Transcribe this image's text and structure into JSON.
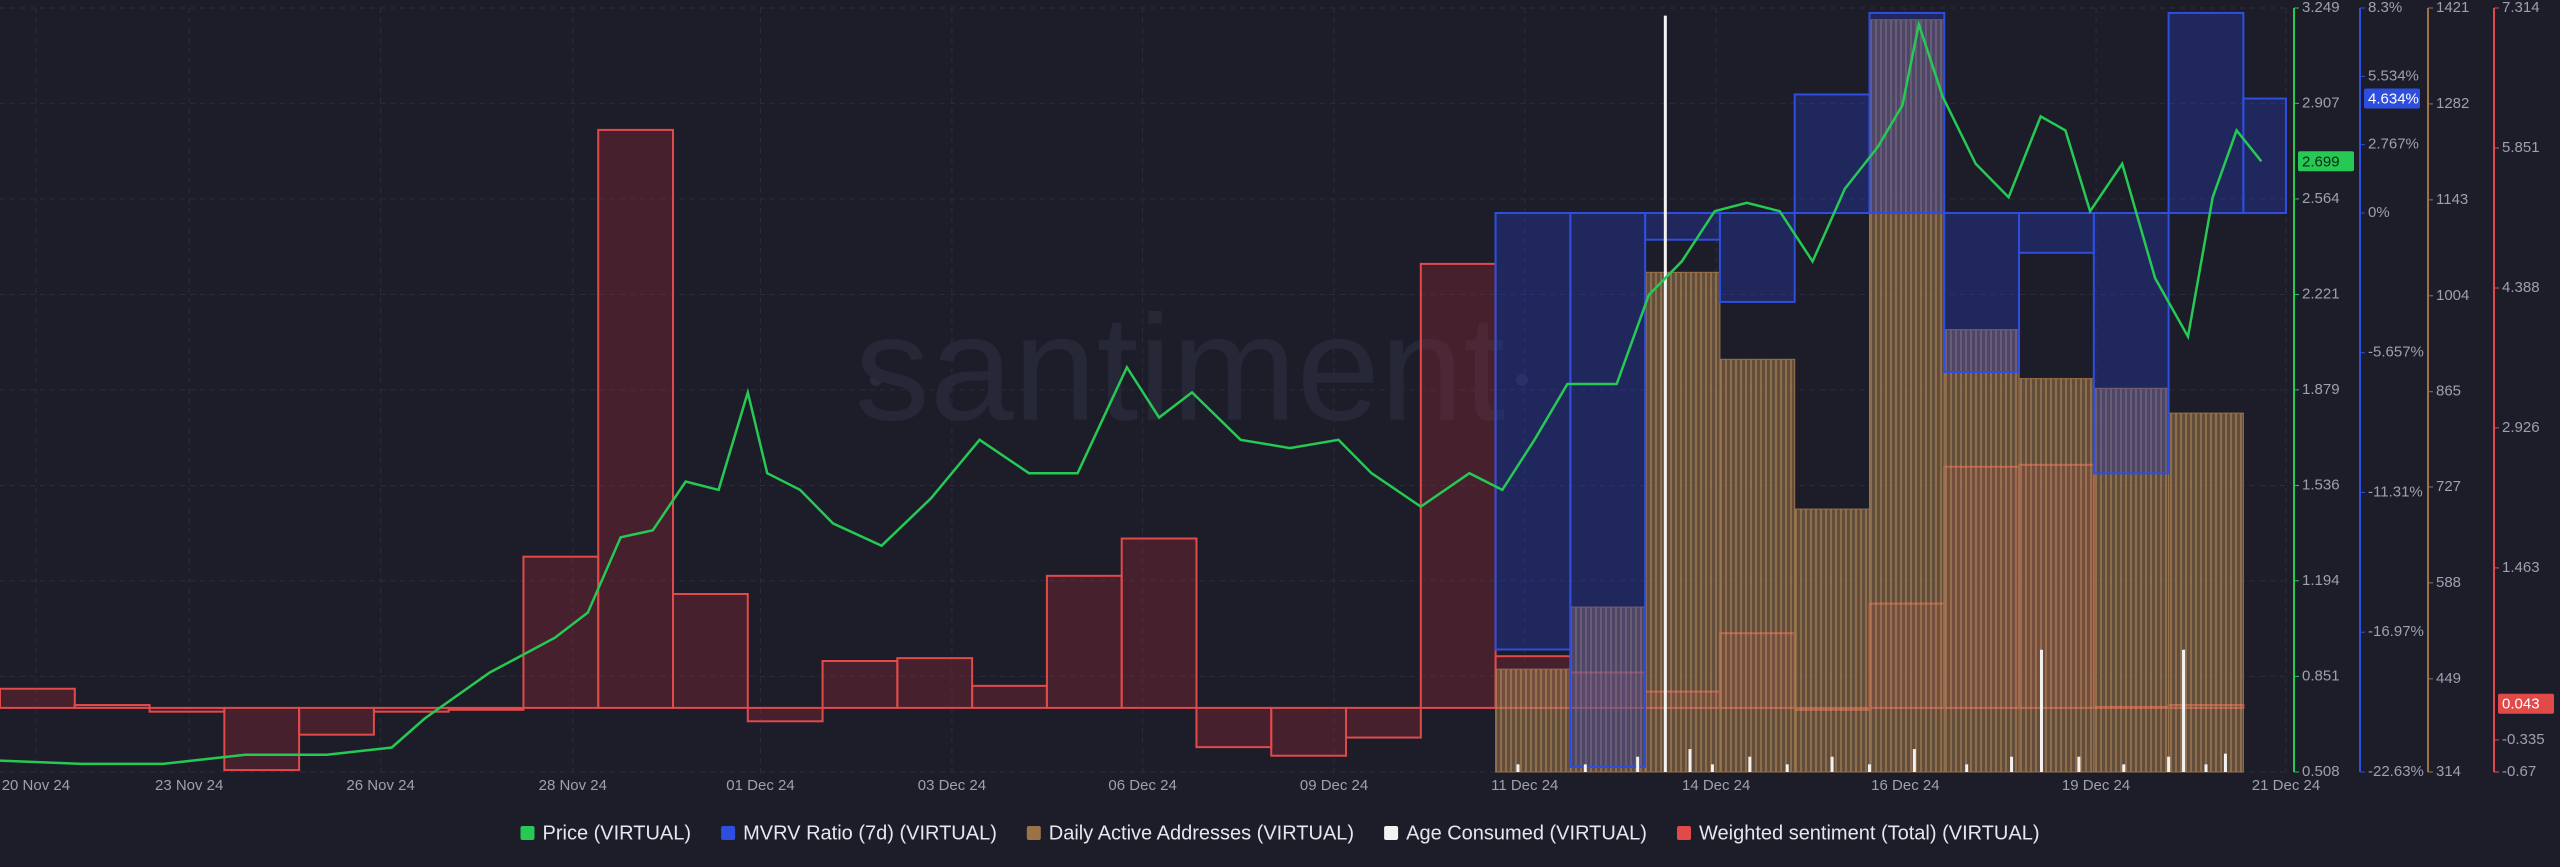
{
  "chart_data": {
    "type": "line",
    "watermark": "santiment",
    "grid": true,
    "xlim": [
      0,
      30.57
    ],
    "xticks": [
      {
        "value": 0.48,
        "label": "20 Nov 24"
      },
      {
        "value": 2.53,
        "label": "23 Nov 24"
      },
      {
        "value": 5.09,
        "label": "26 Nov 24"
      },
      {
        "value": 7.66,
        "label": "28 Nov 24"
      },
      {
        "value": 10.17,
        "label": "01 Dec 24"
      },
      {
        "value": 12.73,
        "label": "03 Dec 24"
      },
      {
        "value": 15.28,
        "label": "06 Dec 24"
      },
      {
        "value": 17.84,
        "label": "09 Dec 24"
      },
      {
        "value": 20.39,
        "label": "11 Dec 24"
      },
      {
        "value": 22.95,
        "label": "14 Dec 24"
      },
      {
        "value": 25.48,
        "label": "16 Dec 24"
      },
      {
        "value": 28.03,
        "label": "19 Dec 24"
      },
      {
        "value": 30.57,
        "label": "21 Dec 24"
      }
    ],
    "series": [
      {
        "name": "Price (VIRTUAL)",
        "type": "line",
        "color": "#26c953",
        "ylim": [
          0.508,
          3.249
        ],
        "yticks": [
          3.249,
          2.907,
          2.564,
          2.221,
          1.879,
          1.536,
          1.194,
          0.851,
          0.508
        ],
        "current": 2.699,
        "x": [
          0,
          1.09,
          2.18,
          3.28,
          4.37,
          5.24,
          5.68,
          6.55,
          7.42,
          7.86,
          8.3,
          8.73,
          9.17,
          9.61,
          10.0,
          10.26,
          10.7,
          11.14,
          11.79,
          12.45,
          13.1,
          13.76,
          14.41,
          15.07,
          15.5,
          15.94,
          16.59,
          17.25,
          17.9,
          18.34,
          19.0,
          19.65,
          20.09,
          20.52,
          20.96,
          21.62,
          22.05,
          22.49,
          22.93,
          23.36,
          23.8,
          24.24,
          24.67,
          25.11,
          25.44,
          25.66,
          25.98,
          26.42,
          26.86,
          27.29,
          27.62,
          27.95,
          28.38,
          28.82,
          29.26,
          29.59,
          29.91,
          30.24
        ],
        "values": [
          0.549,
          0.537,
          0.537,
          0.57,
          0.57,
          0.596,
          0.7,
          0.865,
          0.99,
          1.08,
          1.35,
          1.375,
          1.55,
          1.52,
          1.87,
          1.58,
          1.52,
          1.4,
          1.32,
          1.49,
          1.7,
          1.58,
          1.58,
          1.96,
          1.78,
          1.87,
          1.7,
          1.67,
          1.7,
          1.58,
          1.46,
          1.58,
          1.52,
          1.7,
          1.9,
          1.9,
          2.22,
          2.34,
          2.52,
          2.55,
          2.52,
          2.34,
          2.6,
          2.75,
          2.9,
          3.19,
          2.93,
          2.69,
          2.57,
          2.86,
          2.81,
          2.52,
          2.69,
          2.28,
          2.07,
          2.57,
          2.81,
          2.699
        ]
      },
      {
        "name": "MVRV Ratio (7d) (VIRTUAL)",
        "type": "step",
        "color": "#2e4ee0",
        "ylim": [
          -22.63,
          8.3
        ],
        "yticks": [
          {
            "value": 8.3,
            "label": "8.3%"
          },
          {
            "value": 5.534,
            "label": "5.534%"
          },
          {
            "value": 2.767,
            "label": "2.767%"
          },
          {
            "value": 0,
            "label": "0%"
          },
          {
            "value": -5.657,
            "label": "-5.657%"
          },
          {
            "value": -11.31,
            "label": "-11.31%"
          },
          {
            "value": -16.97,
            "label": "-16.97%"
          },
          {
            "value": -22.63,
            "label": "-22.63%"
          }
        ],
        "current": {
          "value": 4.634,
          "label": "4.634%"
        },
        "x": [
          20,
          21,
          22,
          23,
          24,
          25,
          26,
          27,
          28,
          29,
          30
        ],
        "values": [
          -17.67,
          -22.43,
          -1.08,
          -3.6,
          4.8,
          8.1,
          -6.44,
          -1.61,
          -10.54,
          8.1,
          4.634
        ]
      },
      {
        "name": "Daily Active Addresses (VIRTUAL)",
        "type": "bar",
        "color": "#9a7348",
        "ylim": [
          314,
          1421
        ],
        "yticks": [
          1421,
          1282,
          1143,
          1004,
          865,
          727,
          588,
          449,
          314
        ],
        "x": [
          20,
          21,
          22,
          23,
          24,
          25,
          26,
          27,
          28,
          29
        ],
        "values": [
          463,
          553,
          1038,
          912,
          695,
          1404,
          955,
          884,
          870,
          834
        ]
      },
      {
        "name": "Age Consumed (VIRTUAL)",
        "type": "spike",
        "color": "#f2f2f2",
        "ylim": [
          0,
          100
        ],
        "x": [
          20.3,
          21.2,
          21.9,
          22.27,
          22.6,
          22.9,
          23.4,
          23.9,
          24.5,
          25.0,
          25.6,
          26.3,
          26.9,
          27.3,
          27.8,
          28.4,
          29.0,
          29.2,
          29.5,
          29.76
        ],
        "values": [
          1,
          1,
          2,
          99,
          3,
          1,
          2,
          1,
          2,
          1,
          3,
          1,
          2,
          16,
          2,
          1,
          2,
          16,
          1,
          2.4
        ]
      },
      {
        "name": "Weighted sentiment (Total) (VIRTUAL)",
        "type": "step",
        "color": "#e24a4a",
        "ylim": [
          -0.67,
          7.314
        ],
        "yticks": [
          7.314,
          5.851,
          4.388,
          2.926,
          1.463,
          -0.335,
          -0.67
        ],
        "current": 0.043,
        "x": [
          0,
          1,
          2,
          3,
          4,
          5,
          6,
          7,
          8,
          9,
          10,
          11,
          12,
          13,
          14,
          15,
          16,
          17,
          18,
          19,
          20,
          21,
          22,
          23,
          24,
          25,
          26,
          27,
          28,
          29
        ],
        "values": [
          0.2,
          0.03,
          -0.04,
          -0.65,
          -0.28,
          -0.04,
          -0.02,
          1.58,
          6.04,
          1.19,
          -0.14,
          0.49,
          0.52,
          0.23,
          1.38,
          1.77,
          -0.41,
          -0.5,
          -0.31,
          4.64,
          0.54,
          0.37,
          0.17,
          0.78,
          -0.02,
          1.09,
          2.52,
          2.54,
          0.01,
          0.03
        ]
      }
    ]
  }
}
